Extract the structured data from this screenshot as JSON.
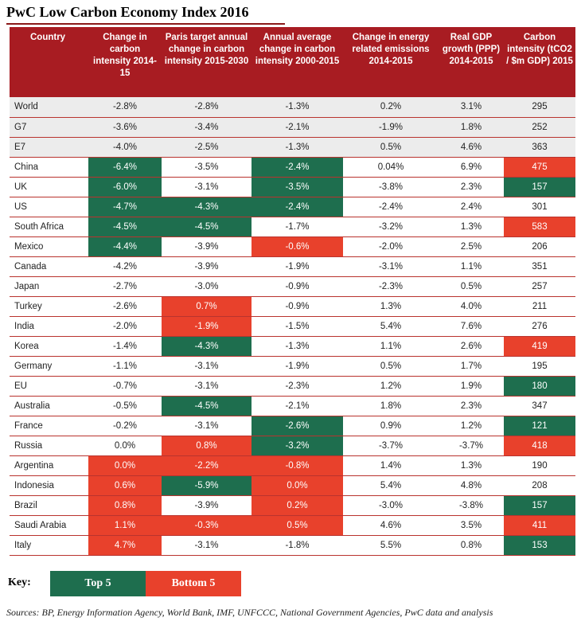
{
  "title": "PwC Low Carbon Economy Index 2016",
  "chart_data": {
    "type": "table",
    "columns": [
      "Country",
      "Change in carbon intensity 2014-15",
      "Paris target annual change in carbon intensity 2015-2030",
      "Annual average change in carbon intensity 2000-2015",
      "Change in energy related emissions 2014-2015",
      "Real GDP growth (PPP) 2014-2015",
      "Carbon intensity (tCO2 / $m GDP) 2015"
    ],
    "rows": [
      {
        "cells": [
          "World",
          "-2.8%",
          "-2.8%",
          "-1.3%",
          "0.2%",
          "3.1%",
          "295"
        ],
        "hl": [
          "",
          "",
          "",
          "",
          "",
          "",
          ""
        ],
        "group": "grey"
      },
      {
        "cells": [
          "G7",
          "-3.6%",
          "-3.4%",
          "-2.1%",
          "-1.9%",
          "1.8%",
          "252"
        ],
        "hl": [
          "",
          "",
          "",
          "",
          "",
          "",
          ""
        ],
        "group": "grey"
      },
      {
        "cells": [
          "E7",
          "-4.0%",
          "-2.5%",
          "-1.3%",
          "0.5%",
          "4.6%",
          "363"
        ],
        "hl": [
          "",
          "",
          "",
          "",
          "",
          "",
          ""
        ],
        "group": "grey"
      },
      {
        "cells": [
          "China",
          "-6.4%",
          "-3.5%",
          "-2.4%",
          "0.04%",
          "6.9%",
          "475"
        ],
        "hl": [
          "",
          "g",
          "",
          "g",
          "",
          "",
          "r"
        ]
      },
      {
        "cells": [
          "UK",
          "-6.0%",
          "-3.1%",
          "-3.5%",
          "-3.8%",
          "2.3%",
          "157"
        ],
        "hl": [
          "",
          "g",
          "",
          "g",
          "",
          "",
          "g"
        ]
      },
      {
        "cells": [
          "US",
          "-4.7%",
          "-4.3%",
          "-2.4%",
          "-2.4%",
          "2.4%",
          "301"
        ],
        "hl": [
          "",
          "g",
          "g",
          "g",
          "",
          "",
          ""
        ]
      },
      {
        "cells": [
          "South Africa",
          "-4.5%",
          "-4.5%",
          "-1.7%",
          "-3.2%",
          "1.3%",
          "583"
        ],
        "hl": [
          "",
          "g",
          "g",
          "",
          "",
          "",
          "r"
        ]
      },
      {
        "cells": [
          "Mexico",
          "-4.4%",
          "-3.9%",
          "-0.6%",
          "-2.0%",
          "2.5%",
          "206"
        ],
        "hl": [
          "",
          "g",
          "",
          "r",
          "",
          "",
          ""
        ]
      },
      {
        "cells": [
          "Canada",
          "-4.2%",
          "-3.9%",
          "-1.9%",
          "-3.1%",
          "1.1%",
          "351"
        ],
        "hl": [
          "",
          "",
          "",
          "",
          "",
          "",
          ""
        ]
      },
      {
        "cells": [
          "Japan",
          "-2.7%",
          "-3.0%",
          "-0.9%",
          "-2.3%",
          "0.5%",
          "257"
        ],
        "hl": [
          "",
          "",
          "",
          "",
          "",
          "",
          ""
        ]
      },
      {
        "cells": [
          "Turkey",
          "-2.6%",
          "0.7%",
          "-0.9%",
          "1.3%",
          "4.0%",
          "211"
        ],
        "hl": [
          "",
          "",
          "r",
          "",
          "",
          "",
          ""
        ]
      },
      {
        "cells": [
          "India",
          "-2.0%",
          "-1.9%",
          "-1.5%",
          "5.4%",
          "7.6%",
          "276"
        ],
        "hl": [
          "",
          "",
          "r",
          "",
          "",
          "",
          ""
        ]
      },
      {
        "cells": [
          "Korea",
          "-1.4%",
          "-4.3%",
          "-1.3%",
          "1.1%",
          "2.6%",
          "419"
        ],
        "hl": [
          "",
          "",
          "g",
          "",
          "",
          "",
          "r"
        ]
      },
      {
        "cells": [
          "Germany",
          "-1.1%",
          "-3.1%",
          "-1.9%",
          "0.5%",
          "1.7%",
          "195"
        ],
        "hl": [
          "",
          "",
          "",
          "",
          "",
          "",
          ""
        ]
      },
      {
        "cells": [
          "EU",
          "-0.7%",
          "-3.1%",
          "-2.3%",
          "1.2%",
          "1.9%",
          "180"
        ],
        "hl": [
          "",
          "",
          "",
          "",
          "",
          "",
          "g"
        ]
      },
      {
        "cells": [
          "Australia",
          "-0.5%",
          "-4.5%",
          "-2.1%",
          "1.8%",
          "2.3%",
          "347"
        ],
        "hl": [
          "",
          "",
          "g",
          "",
          "",
          "",
          ""
        ]
      },
      {
        "cells": [
          "France",
          "-0.2%",
          "-3.1%",
          "-2.6%",
          "0.9%",
          "1.2%",
          "121"
        ],
        "hl": [
          "",
          "",
          "",
          "g",
          "",
          "",
          "g"
        ]
      },
      {
        "cells": [
          "Russia",
          "0.0%",
          "0.8%",
          "-3.2%",
          "-3.7%",
          "-3.7%",
          "418"
        ],
        "hl": [
          "",
          "",
          "r",
          "g",
          "",
          "",
          "r"
        ]
      },
      {
        "cells": [
          "Argentina",
          "0.0%",
          "-2.2%",
          "-0.8%",
          "1.4%",
          "1.3%",
          "190"
        ],
        "hl": [
          "",
          "r",
          "r",
          "r",
          "",
          "",
          ""
        ]
      },
      {
        "cells": [
          "Indonesia",
          "0.6%",
          "-5.9%",
          "0.0%",
          "5.4%",
          "4.8%",
          "208"
        ],
        "hl": [
          "",
          "r",
          "g",
          "r",
          "",
          "",
          ""
        ]
      },
      {
        "cells": [
          "Brazil",
          "0.8%",
          "-3.9%",
          "0.2%",
          "-3.0%",
          "-3.8%",
          "157"
        ],
        "hl": [
          "",
          "r",
          "",
          "r",
          "",
          "",
          "g"
        ]
      },
      {
        "cells": [
          "Saudi Arabia",
          "1.1%",
          "-0.3%",
          "0.5%",
          "4.6%",
          "3.5%",
          "411"
        ],
        "hl": [
          "",
          "r",
          "r",
          "r",
          "",
          "",
          "r"
        ]
      },
      {
        "cells": [
          "Italy",
          "4.7%",
          "-3.1%",
          "-1.8%",
          "5.5%",
          "0.8%",
          "153"
        ],
        "hl": [
          "",
          "r",
          "",
          "",
          "",
          "",
          "g"
        ]
      }
    ],
    "colors": {
      "top": "#1e6e4e",
      "bottom": "#e8412c",
      "header": "#a81c22"
    }
  },
  "key": {
    "label": "Key:",
    "top": "Top 5",
    "bottom": "Bottom 5"
  },
  "sources": "Sources: BP, Energy Information Agency, World Bank, IMF, UNFCCC, National Government Agencies, PwC data and analysis"
}
